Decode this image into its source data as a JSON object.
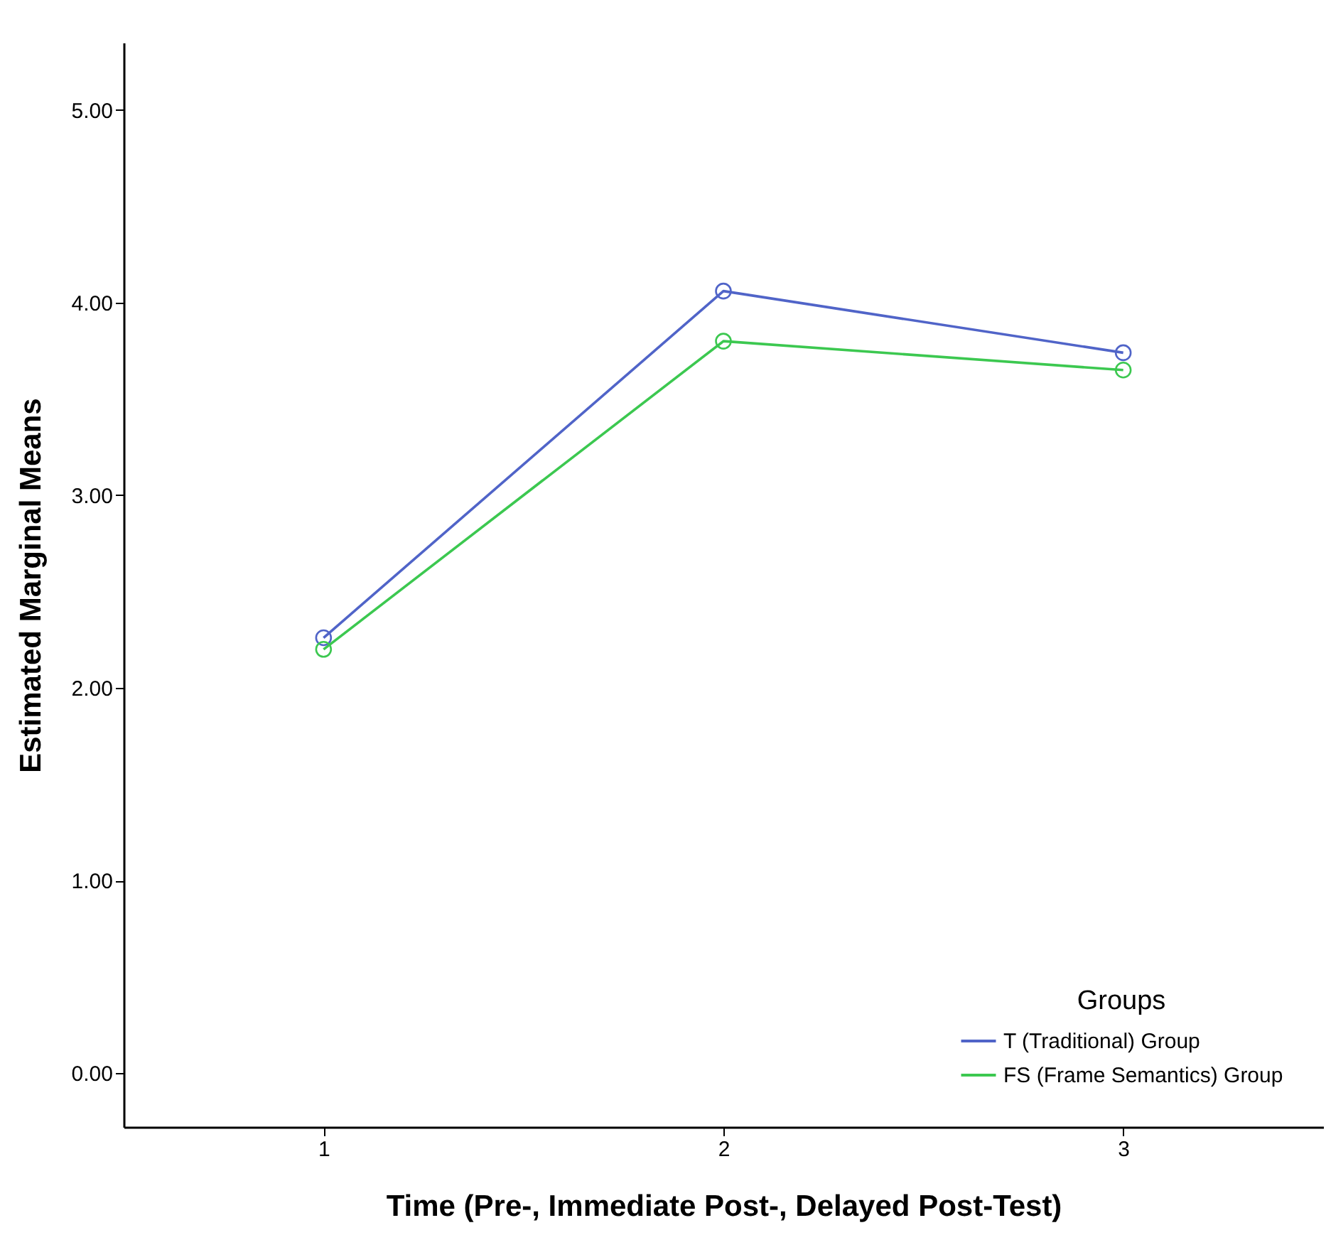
{
  "chart_data": {
    "type": "line",
    "xlabel": "Time (Pre-, Immediate Post-, Delayed Post-Test)",
    "ylabel": "Estimated Marginal Means",
    "legend_title": "Groups",
    "categories": [
      "1",
      "2",
      "3"
    ],
    "series": [
      {
        "name": "T (Traditional) Group",
        "color": "#5064c8",
        "values": [
          2.26,
          4.06,
          3.74
        ]
      },
      {
        "name": "FS (Frame Semantics) Group",
        "color": "#3cc850",
        "values": [
          2.2,
          3.8,
          3.65
        ]
      }
    ],
    "ylim": [
      -0.28,
      5.35
    ],
    "yticks": [
      {
        "value": 0,
        "label": "0.00"
      },
      {
        "value": 1,
        "label": "1.00"
      },
      {
        "value": 2,
        "label": "2.00"
      },
      {
        "value": 3,
        "label": "3.00"
      },
      {
        "value": 4,
        "label": "4.00"
      },
      {
        "value": 5,
        "label": "5.00"
      }
    ],
    "grid": false,
    "legend": "bottom right",
    "marker": "circle",
    "line_style": "solid"
  }
}
